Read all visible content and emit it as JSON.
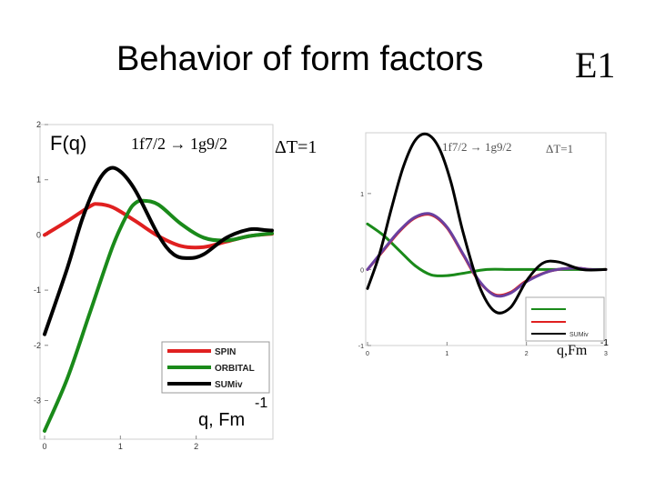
{
  "slide": {
    "title": "Behavior of form factors",
    "tag": "E1"
  },
  "chart_data": [
    {
      "type": "line",
      "ylabel": "F(q)",
      "xlabel": "q, Fm",
      "xlabel_exp": "-1",
      "annotation_transition": "1f7/2 → 1g9/2",
      "annotation_dt": "ΔT=1",
      "xlim": [
        0,
        3
      ],
      "ylim": [
        -3.7,
        2
      ],
      "x_ticks": [
        "0",
        "1",
        "2"
      ],
      "y_ticks": [
        "2",
        "1",
        "0",
        "-1",
        "-2",
        "-3"
      ],
      "grid": false,
      "legend_position": "bottom-right",
      "series": [
        {
          "name": "SPIN",
          "color": "#e02020",
          "x": [
            0,
            0.3,
            0.6,
            0.7,
            0.9,
            1.2,
            1.5,
            1.8,
            2.1,
            2.4,
            2.7,
            3.0
          ],
          "y": [
            0.0,
            0.25,
            0.52,
            0.56,
            0.5,
            0.25,
            -0.02,
            -0.2,
            -0.22,
            -0.12,
            -0.02,
            0.02
          ]
        },
        {
          "name": "ORBITAL",
          "color": "#1a8a1a",
          "x": [
            0,
            0.3,
            0.6,
            0.9,
            1.1,
            1.2,
            1.3,
            1.5,
            1.8,
            2.1,
            2.4,
            2.7,
            3.0
          ],
          "y": [
            -3.55,
            -2.6,
            -1.4,
            -0.2,
            0.4,
            0.58,
            0.62,
            0.55,
            0.2,
            -0.05,
            -0.1,
            -0.02,
            0.03
          ]
        },
        {
          "name": "SUMiv",
          "color": "#000000",
          "x": [
            0,
            0.3,
            0.5,
            0.7,
            0.85,
            1.0,
            1.2,
            1.5,
            1.7,
            1.9,
            2.1,
            2.4,
            2.7,
            2.9,
            3.0
          ],
          "y": [
            -1.8,
            -0.6,
            0.3,
            0.95,
            1.2,
            1.15,
            0.8,
            0.0,
            -0.35,
            -0.42,
            -0.35,
            -0.05,
            0.1,
            0.09,
            0.08
          ]
        }
      ]
    },
    {
      "type": "line",
      "xlabel": "q,Fm",
      "xlabel_exp": "-1",
      "annotation_transition": "1f7/2 → 1g9/2",
      "annotation_dt": "ΔT=1",
      "xlim": [
        0,
        3
      ],
      "ylim": [
        -1,
        1.8
      ],
      "x_ticks": [
        "0",
        "1",
        "2",
        "3"
      ],
      "y_ticks": [
        "1",
        "0",
        "-1"
      ],
      "grid": false,
      "legend_position": "bottom-right",
      "legend_visible_label": "SUMiv",
      "series": [
        {
          "name": "",
          "color": "#1a8a1a",
          "x": [
            0,
            0.2,
            0.4,
            0.6,
            0.8,
            1.0,
            1.2,
            1.5,
            1.8,
            2.1,
            2.4,
            2.7,
            3.0
          ],
          "y": [
            0.6,
            0.45,
            0.25,
            0.05,
            -0.07,
            -0.08,
            -0.05,
            0.0,
            0.0,
            0.0,
            0.0,
            0.0,
            0.0
          ]
        },
        {
          "name": "",
          "color": "#e02020",
          "x": [
            0,
            0.2,
            0.4,
            0.6,
            0.8,
            1.0,
            1.2,
            1.4,
            1.6,
            1.8,
            2.0,
            2.3,
            2.6,
            2.8,
            3.0
          ],
          "y": [
            0.0,
            0.25,
            0.5,
            0.68,
            0.72,
            0.55,
            0.2,
            -0.15,
            -0.33,
            -0.3,
            -0.15,
            -0.02,
            0.02,
            0.0,
            0.0
          ]
        },
        {
          "name": "",
          "color": "#6a40a0",
          "x": [
            0,
            0.2,
            0.4,
            0.6,
            0.8,
            1.0,
            1.2,
            1.4,
            1.6,
            1.8,
            2.0,
            2.3,
            2.6,
            2.8,
            3.0
          ],
          "y": [
            0.0,
            0.26,
            0.51,
            0.69,
            0.73,
            0.56,
            0.21,
            -0.14,
            -0.34,
            -0.31,
            -0.16,
            -0.02,
            0.02,
            0.0,
            0.0
          ]
        },
        {
          "name": "SUMiv",
          "color": "#000000",
          "x": [
            0,
            0.15,
            0.3,
            0.45,
            0.6,
            0.75,
            0.9,
            1.05,
            1.2,
            1.4,
            1.6,
            1.8,
            2.0,
            2.2,
            2.4,
            2.7,
            3.0
          ],
          "y": [
            -0.25,
            0.2,
            0.8,
            1.35,
            1.7,
            1.78,
            1.6,
            1.15,
            0.5,
            -0.2,
            -0.55,
            -0.5,
            -0.15,
            0.08,
            0.1,
            0.0,
            0.0
          ]
        }
      ]
    }
  ]
}
